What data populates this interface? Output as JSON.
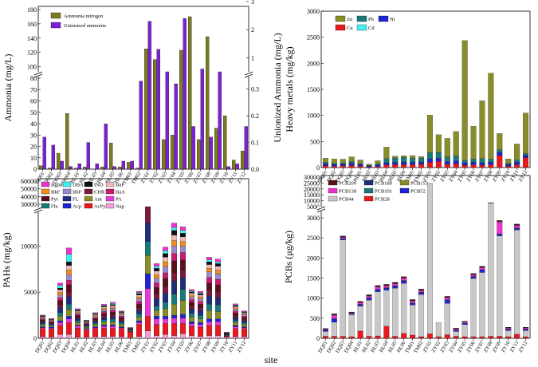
{
  "sites": [
    "DQ01",
    "DQ02",
    "DQ03",
    "DQ04",
    "HL01",
    "HL02",
    "HL03",
    "HL04",
    "HL05",
    "HL06",
    "TM01",
    "TM02",
    "ZY01",
    "ZY02",
    "ZY03",
    "ZY04",
    "ZY05",
    "ZY06",
    "ZY07",
    "ZY08",
    "ZY09",
    "ZY10",
    "ZY11",
    "ZY12"
  ],
  "x_axis_title": "site",
  "chart_data": [
    {
      "id": "ammonia",
      "type": "bar",
      "ylabel": "Ammonia (mg/L)",
      "y2label": "Unionized Ammonia (mg/L)",
      "left_ticks_upper": [
        "100",
        "120",
        "140",
        "160",
        "180"
      ],
      "left_ticks_lower": [
        "0",
        "10",
        "20",
        "30",
        "40",
        "50",
        "60",
        "70",
        "80"
      ],
      "right_ticks_upper": [
        "1",
        "2",
        "3"
      ],
      "right_ticks_lower": [
        "0.0",
        "0.1",
        "0.2",
        "0.3"
      ],
      "left_break": [
        80,
        95
      ],
      "right_break": [
        0.35,
        0.5
      ],
      "series": [
        {
          "name": "Ammonia nitrogen",
          "color": "#7b7b1e",
          "axis": "left",
          "values": [
            3,
            1,
            14,
            49,
            1,
            2,
            0,
            2,
            23,
            2,
            6,
            1,
            125,
            110,
            26,
            30,
            123,
            170,
            26,
            142,
            36,
            47,
            8,
            16
          ]
        },
        {
          "name": "Unionized ammonia",
          "color": "#7d1fd6",
          "axis": "right",
          "values": [
            0.12,
            0.09,
            0.03,
            0.01,
            0.02,
            0.1,
            0.02,
            0.17,
            0.01,
            0.03,
            0.03,
            0.33,
            2.3,
            1.3,
            0.4,
            0.32,
            2.4,
            0.16,
            0.6,
            0.12,
            0.4,
            0.01,
            0.02,
            0.16
          ]
        }
      ]
    },
    {
      "id": "heavy_metals",
      "type": "bar",
      "stacked": true,
      "ylabel": "Heavy metals (mg/kg)",
      "ticks": [
        "0",
        "500",
        "1000",
        "1500",
        "2000",
        "2500",
        "3000"
      ],
      "ylim": [
        0,
        3000
      ],
      "series": [
        {
          "name": "Cu",
          "color": "#e8191c",
          "values": [
            38,
            25,
            35,
            42,
            30,
            10,
            22,
            50,
            55,
            60,
            58,
            65,
            105,
            118,
            65,
            70,
            45,
            55,
            45,
            55,
            230,
            30,
            55,
            190
          ]
        },
        {
          "name": "Ni",
          "color": "#1f24d6",
          "values": [
            35,
            35,
            30,
            40,
            25,
            20,
            28,
            40,
            42,
            45,
            40,
            40,
            60,
            60,
            45,
            55,
            40,
            45,
            45,
            45,
            60,
            30,
            50,
            40
          ]
        },
        {
          "name": "Cd",
          "color": "#3ff0ee",
          "values": [
            2,
            1,
            1,
            2,
            1,
            1,
            1,
            2,
            2,
            2,
            2,
            2,
            3,
            3,
            5,
            2,
            2,
            2,
            2,
            2,
            3,
            1,
            2,
            2
          ]
        },
        {
          "name": "Pb",
          "color": "#197a7a",
          "values": [
            25,
            20,
            20,
            30,
            20,
            10,
            20,
            80,
            85,
            90,
            80,
            75,
            120,
            110,
            90,
            95,
            50,
            60,
            80,
            60,
            50,
            20,
            40,
            35
          ]
        },
        {
          "name": "Zn",
          "color": "#888d2a",
          "values": [
            80,
            85,
            75,
            92,
            70,
            26,
            60,
            220,
            35,
            30,
            50,
            28,
            720,
            340,
            355,
            470,
            2300,
            630,
            1110,
            1650,
            310,
            85,
            305,
            780
          ]
        }
      ]
    },
    {
      "id": "pahs",
      "type": "bar",
      "stacked": true,
      "ylabel": "PAHs  (mg/kg)",
      "ticks_lower": [
        "0",
        "5000",
        "10000"
      ],
      "ticks_upper": [
        "30000",
        "40000",
        "50000",
        "60000"
      ],
      "break": [
        13500,
        27000
      ],
      "series": [
        {
          "name": "Nap",
          "color": "#f0a0d4",
          "values": [
            150,
            120,
            400,
            400,
            120,
            100,
            150,
            200,
            200,
            150,
            80,
            200,
            800,
            300,
            400,
            300,
            500,
            300,
            200,
            300,
            300,
            100,
            150,
            150
          ]
        },
        {
          "name": "AcPy",
          "color": "#e8191c",
          "values": [
            900,
            900,
            1000,
            1300,
            1000,
            800,
            900,
            900,
            900,
            900,
            600,
            1300,
            1600,
            1200,
            1200,
            1300,
            1100,
            1000,
            1000,
            1100,
            1100,
            100,
            900,
            900
          ]
        },
        {
          "name": "PA",
          "color": "#e63ad6",
          "values": [
            100,
            100,
            300,
            400,
            200,
            100,
            100,
            200,
            200,
            100,
            50,
            200,
            3000,
            600,
            500,
            600,
            600,
            300,
            300,
            400,
            400,
            50,
            200,
            100
          ]
        },
        {
          "name": "Acp",
          "color": "#1f24d6",
          "values": [
            100,
            100,
            200,
            300,
            100,
            50,
            100,
            150,
            150,
            100,
            30,
            200,
            1600,
            300,
            300,
            300,
            400,
            200,
            200,
            300,
            300,
            30,
            150,
            100
          ]
        },
        {
          "name": "Ant",
          "color": "#888d2a",
          "values": [
            200,
            150,
            500,
            700,
            300,
            150,
            250,
            300,
            300,
            250,
            80,
            400,
            2000,
            600,
            800,
            1200,
            1500,
            500,
            400,
            900,
            800,
            50,
            300,
            250
          ]
        },
        {
          "name": "Flu",
          "color": "#197a7a",
          "values": [
            150,
            100,
            400,
            600,
            200,
            100,
            150,
            250,
            300,
            200,
            50,
            350,
            1500,
            500,
            700,
            1100,
            1200,
            400,
            400,
            700,
            700,
            50,
            250,
            200
          ]
        },
        {
          "name": "FL",
          "color": "#1d2e7a",
          "values": [
            150,
            100,
            500,
            800,
            200,
            100,
            200,
            250,
            300,
            200,
            50,
            400,
            2000,
            800,
            1000,
            1400,
            1300,
            500,
            500,
            900,
            800,
            50,
            300,
            200
          ]
        },
        {
          "name": "CHR",
          "color": "#7b1a3a",
          "values": [
            100,
            80,
            300,
            500,
            150,
            80,
            120,
            200,
            200,
            150,
            30,
            250,
            1200,
            500,
            700,
            900,
            800,
            300,
            300,
            600,
            600,
            30,
            200,
            150
          ]
        },
        {
          "name": "Pyr",
          "color": "#5a0f1a",
          "values": [
            150,
            100,
            500,
            800,
            200,
            100,
            150,
            250,
            300,
            200,
            50,
            400,
            1800,
            700,
            900,
            1300,
            1100,
            400,
            400,
            800,
            800,
            50,
            300,
            200
          ]
        },
        {
          "name": "BaA",
          "color": "#c81a70",
          "values": [
            100,
            80,
            300,
            500,
            150,
            80,
            120,
            200,
            200,
            150,
            30,
            300,
            1500,
            500,
            600,
            800,
            800,
            300,
            300,
            600,
            600,
            30,
            200,
            150
          ]
        },
        {
          "name": "BbF",
          "color": "#9a8ad0",
          "values": [
            100,
            80,
            300,
            600,
            150,
            80,
            120,
            200,
            200,
            150,
            30,
            300,
            800,
            500,
            700,
            800,
            700,
            300,
            300,
            600,
            600,
            30,
            200,
            150
          ]
        },
        {
          "name": "BkF",
          "color": "#f28c1c",
          "values": [
            80,
            60,
            300,
            500,
            100,
            60,
            100,
            150,
            150,
            100,
            20,
            200,
            600,
            400,
            500,
            600,
            500,
            200,
            200,
            400,
            400,
            20,
            150,
            100
          ]
        },
        {
          "name": "BaP",
          "color": "#f2b8b8",
          "values": [
            80,
            60,
            250,
            500,
            100,
            60,
            100,
            150,
            150,
            100,
            20,
            200,
            600,
            400,
            500,
            600,
            500,
            200,
            200,
            400,
            400,
            20,
            150,
            100
          ]
        },
        {
          "name": "IND",
          "color": "#101014",
          "values": [
            60,
            40,
            200,
            400,
            80,
            40,
            80,
            100,
            120,
            80,
            20,
            150,
            400,
            300,
            400,
            500,
            400,
            150,
            150,
            300,
            300,
            20,
            100,
            80
          ]
        },
        {
          "name": "DBA",
          "color": "#3ff0ee",
          "values": [
            40,
            30,
            300,
            800,
            60,
            30,
            60,
            80,
            100,
            60,
            10,
            100,
            300,
            200,
            300,
            300,
            300,
            100,
            100,
            200,
            200,
            10,
            80,
            60
          ]
        },
        {
          "name": "BghiP",
          "color": "#ee33cc",
          "values": [
            60,
            40,
            250,
            700,
            100,
            40,
            80,
            120,
            150,
            80,
            20,
            150,
            400,
            300,
            400,
            500,
            400,
            150,
            150,
            300,
            300,
            20,
            100,
            80
          ]
        }
      ]
    },
    {
      "id": "pcbs",
      "type": "bar",
      "stacked": true,
      "ylabel": "PCBs  (μg/kg)",
      "ticks_lower": [
        "0",
        "500",
        "1000",
        "1500",
        "2000",
        "2500",
        "3000"
      ],
      "ticks_upper": [
        "5000",
        "10000",
        "15000",
        "20000",
        "25000",
        "30000"
      ],
      "break": [
        3100,
        5000
      ],
      "series": [
        {
          "name": "PCB28",
          "color": "#e8191c",
          "values": [
            50,
            50,
            50,
            40,
            180,
            50,
            60,
            300,
            50,
            120,
            80,
            40,
            110,
            40,
            90,
            50,
            40,
            40,
            40,
            50,
            50,
            40,
            100,
            40
          ]
        },
        {
          "name": "PCB44",
          "color": "#c8c8c8",
          "values": [
            120,
            350,
            2400,
            550,
            620,
            900,
            1100,
            900,
            1200,
            1250,
            750,
            1050,
            24800,
            350,
            780,
            120,
            300,
            1450,
            1600,
            8000,
            2500,
            150,
            2600,
            150
          ]
        },
        {
          "name": "PCB52",
          "color": "#1f24d6",
          "values": [
            30,
            80,
            30,
            20,
            40,
            50,
            50,
            50,
            50,
            60,
            40,
            50,
            0,
            0,
            80,
            30,
            30,
            40,
            60,
            150,
            40,
            30,
            40,
            30
          ]
        },
        {
          "name": "PCB101",
          "color": "#197a7a",
          "values": [
            5,
            10,
            5,
            5,
            10,
            10,
            10,
            10,
            10,
            10,
            10,
            10,
            0,
            0,
            10,
            5,
            5,
            10,
            10,
            20,
            10,
            5,
            10,
            5
          ]
        },
        {
          "name": "PCB138",
          "color": "#ee33cc",
          "values": [
            20,
            80,
            30,
            20,
            40,
            40,
            60,
            50,
            50,
            60,
            50,
            40,
            0,
            0,
            50,
            30,
            30,
            40,
            50,
            80,
            300,
            30,
            60,
            30
          ]
        },
        {
          "name": "PCB153",
          "color": "#888d2a",
          "values": [
            5,
            10,
            5,
            5,
            5,
            5,
            5,
            5,
            5,
            5,
            5,
            5,
            0,
            0,
            5,
            5,
            5,
            5,
            5,
            10,
            5,
            5,
            5,
            5
          ]
        },
        {
          "name": "PCB180",
          "color": "#1d2e7a",
          "values": [
            5,
            10,
            10,
            5,
            5,
            10,
            10,
            10,
            10,
            10,
            10,
            10,
            0,
            0,
            10,
            5,
            5,
            10,
            10,
            20,
            10,
            5,
            10,
            5
          ]
        },
        {
          "name": "PCB209",
          "color": "#5a0f1a",
          "values": [
            10,
            20,
            20,
            10,
            20,
            20,
            20,
            20,
            20,
            20,
            20,
            20,
            0,
            0,
            20,
            10,
            10,
            20,
            20,
            30,
            20,
            10,
            20,
            10
          ]
        }
      ]
    }
  ]
}
